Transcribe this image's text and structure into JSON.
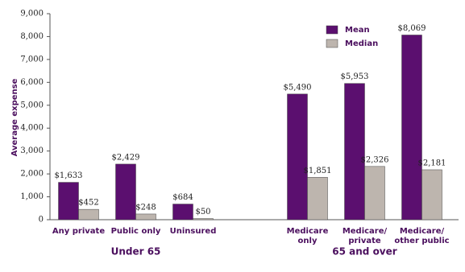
{
  "chart_data": {
    "type": "bar",
    "y_label": "Average expense",
    "categories": [
      "Any private",
      "Public only",
      "Uninsured",
      null,
      "Medicare only",
      "Medicare/ private",
      "Medicare/ other public"
    ],
    "groups": [
      "Under 65",
      "65 and over"
    ],
    "series": [
      {
        "name": "Mean",
        "color": "#5b0f6f",
        "values": [
          1633,
          2429,
          684,
          null,
          5490,
          5953,
          8069
        ],
        "value_labels": [
          "$1,633",
          "$2,429",
          "$684",
          null,
          "$5,490",
          "$5,953",
          "$8,069"
        ]
      },
      {
        "name": "Median",
        "color": "#bdb5ae",
        "values": [
          452,
          248,
          50,
          null,
          1851,
          2326,
          2181
        ],
        "value_labels": [
          "$452",
          "$248",
          "$50",
          null,
          "$1,851",
          "$2,326",
          "$2,181"
        ]
      }
    ],
    "ylim": [
      0,
      9000
    ],
    "yticks": [
      0,
      {
        "value": 1000,
        "label": "1,000"
      },
      {
        "value": 2000,
        "label": "2,000"
      },
      {
        "value": 3000,
        "label": "3,000"
      },
      {
        "value": 4000,
        "label": "4,000"
      },
      {
        "value": 5000,
        "label": "5,000"
      },
      {
        "value": 6000,
        "label": "6,000"
      },
      {
        "value": 7000,
        "label": "7,000"
      },
      {
        "value": 8000,
        "label": "8,000"
      },
      {
        "value": 9000,
        "label": "9,000"
      }
    ],
    "grid": false,
    "legend": "top-right"
  }
}
